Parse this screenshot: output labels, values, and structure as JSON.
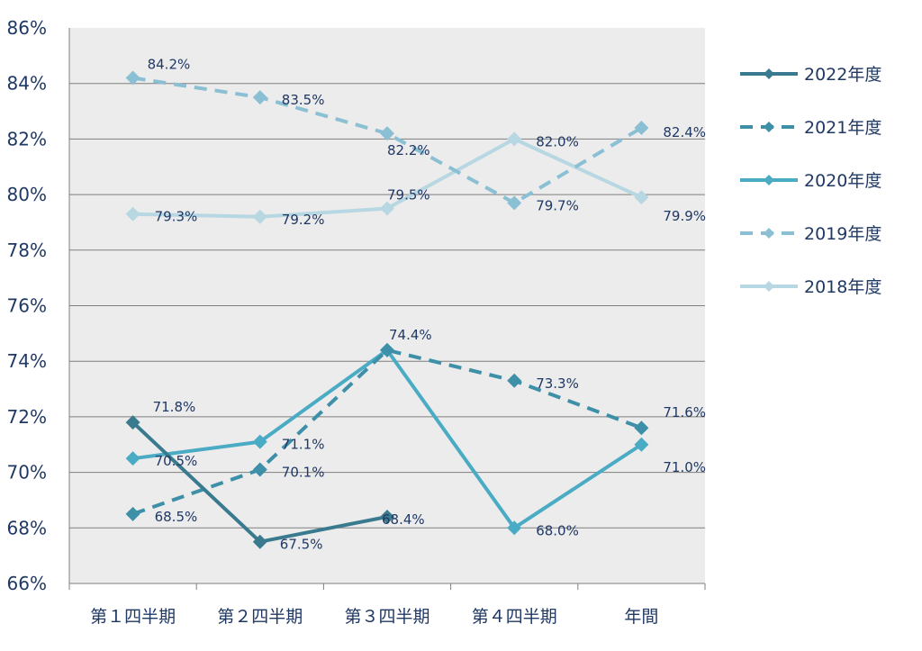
{
  "chart_data": {
    "type": "line",
    "title": "",
    "xlabel": "",
    "ylabel": "",
    "ylim": [
      66,
      86
    ],
    "y_ticks": [
      "66%",
      "68%",
      "70%",
      "72%",
      "74%",
      "76%",
      "78%",
      "80%",
      "82%",
      "84%",
      "86%"
    ],
    "categories": [
      "第１四半期",
      "第２四半期",
      "第３四半期",
      "第４四半期",
      "年間"
    ],
    "grid": true,
    "legend_position": "right",
    "colors": {
      "plot_background": "#ECECEC",
      "gridline": "#7F7F7F",
      "text": "#1F3864"
    },
    "series": [
      {
        "name": "2022年度",
        "values": [
          71.8,
          67.5,
          68.4,
          null,
          null
        ],
        "labels": [
          "71.8%",
          "67.5%",
          "68.4%",
          null,
          null
        ],
        "color": "#3A7A8E",
        "dashed": false
      },
      {
        "name": "2021年度",
        "values": [
          68.5,
          70.1,
          74.4,
          73.3,
          71.6
        ],
        "labels": [
          "68.5%",
          "70.1%",
          "74.4%",
          "73.3%",
          "71.6%"
        ],
        "color": "#3E8FA8",
        "dashed": true
      },
      {
        "name": "2020年度",
        "values": [
          70.5,
          71.1,
          74.4,
          68.0,
          71.0
        ],
        "labels": [
          "70.5%",
          "71.1%",
          "",
          "68.0%",
          "71.0%"
        ],
        "color": "#4AABC4",
        "dashed": false
      },
      {
        "name": "2019年度",
        "values": [
          84.2,
          83.5,
          82.2,
          79.7,
          82.4
        ],
        "labels": [
          "84.2%",
          "83.5%",
          "82.2%",
          "79.7%",
          "82.4%"
        ],
        "color": "#8BBFD3",
        "dashed": true
      },
      {
        "name": "2018年度",
        "values": [
          79.3,
          79.2,
          79.5,
          82.0,
          79.9
        ],
        "labels": [
          "79.3%",
          "79.2%",
          "79.5%",
          "82.0%",
          "79.9%"
        ],
        "color": "#B7D7E2",
        "dashed": false
      }
    ]
  }
}
